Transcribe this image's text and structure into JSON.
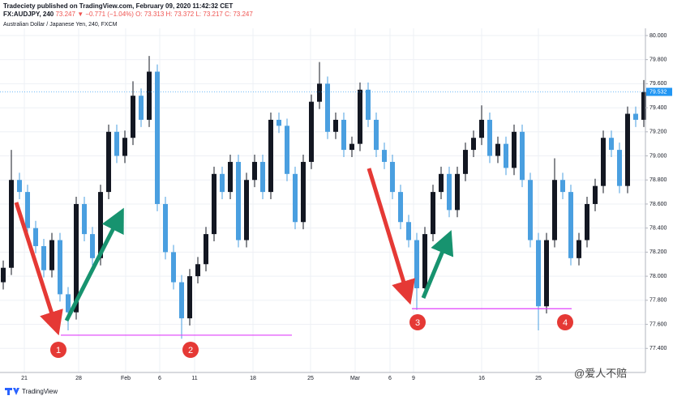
{
  "header": {
    "publisher": "Tradeciety published on TradingView.com, February 09, 2020 11:42:32 CET",
    "symbol": "FX:AUDJPY, 240",
    "price": "73.247",
    "change": "▼ −0.771 (−1.04%)",
    "open": "O: 73.313",
    "high": "H: 73.372",
    "low": "L: 73.217",
    "close": "C: 73.247"
  },
  "footer": {
    "brand": "TradingView",
    "watermark": "@爱人不赔"
  },
  "chart_data": {
    "type": "candlestick",
    "title": "Australian Dollar / Japanese Yen, 240, FXCM",
    "up_color": "#131722",
    "down_color": "#4a9fe0",
    "grid": true,
    "open": [
      77.95,
      78.07,
      78.8,
      78.7,
      78.4,
      78.25,
      78.05,
      78.3,
      77.85,
      77.7,
      78.6,
      78.35,
      78.15,
      78.7,
      79.2,
      79.0,
      79.15,
      79.5,
      79.3,
      79.7,
      78.6,
      78.2,
      77.95,
      77.65,
      78.0,
      78.1,
      78.35,
      78.85,
      78.7,
      78.95,
      78.3,
      78.8,
      78.95,
      78.7,
      79.3,
      79.25,
      78.85,
      78.45,
      78.95,
      79.45,
      79.6,
      79.2,
      79.3,
      79.05,
      79.1,
      79.55,
      79.3,
      79.05,
      78.95,
      78.7,
      78.45,
      78.3,
      77.9,
      78.35,
      78.7,
      78.85,
      78.55,
      78.85,
      79.05,
      79.15,
      79.3,
      79.0,
      79.1,
      78.9,
      79.2,
      78.8,
      78.3,
      77.75,
      78.3,
      78.8,
      78.7,
      78.15,
      78.3,
      78.6,
      78.75,
      79.15,
      79.05,
      78.75,
      79.35,
      79.3
    ],
    "high": [
      78.13,
      79.05,
      78.86,
      78.76,
      78.46,
      78.31,
      78.36,
      78.36,
      77.91,
      78.66,
      78.66,
      78.41,
      78.76,
      79.26,
      79.26,
      79.21,
      79.62,
      79.56,
      79.83,
      79.76,
      78.66,
      78.26,
      78.01,
      78.06,
      78.16,
      78.41,
      78.91,
      78.91,
      79.01,
      79.01,
      78.86,
      79.01,
      79.01,
      79.36,
      79.36,
      79.31,
      78.91,
      79.01,
      79.51,
      79.78,
      79.66,
      79.36,
      79.36,
      79.16,
      79.61,
      79.61,
      79.36,
      79.11,
      79.01,
      78.76,
      78.51,
      78.36,
      78.41,
      78.76,
      78.91,
      78.91,
      78.91,
      79.11,
      79.21,
      79.42,
      79.36,
      79.16,
      79.16,
      79.26,
      79.26,
      78.86,
      78.36,
      78.36,
      78.98,
      78.86,
      78.76,
      78.36,
      78.66,
      78.81,
      79.21,
      79.21,
      79.11,
      79.41,
      79.41,
      79.63
    ],
    "low": [
      77.89,
      78.01,
      78.64,
      78.34,
      78.19,
      77.99,
      77.99,
      77.79,
      77.55,
      77.64,
      78.29,
      78.09,
      78.09,
      78.64,
      78.94,
      78.94,
      79.09,
      79.24,
      79.24,
      78.54,
      78.14,
      77.89,
      77.48,
      77.59,
      77.94,
      78.04,
      78.29,
      78.64,
      78.64,
      78.24,
      78.24,
      78.74,
      78.64,
      78.64,
      79.19,
      78.79,
      78.39,
      78.39,
      78.89,
      79.39,
      79.14,
      79.14,
      78.99,
      78.99,
      79.04,
      79.24,
      78.99,
      78.89,
      78.64,
      78.39,
      78.24,
      77.72,
      77.84,
      78.29,
      78.64,
      78.49,
      78.49,
      78.79,
      78.99,
      79.09,
      78.94,
      78.94,
      78.84,
      78.84,
      78.74,
      78.24,
      77.55,
      77.69,
      78.24,
      78.64,
      78.09,
      78.09,
      78.24,
      78.54,
      78.69,
      78.99,
      78.69,
      78.69,
      79.24,
      79.24
    ],
    "close": [
      78.07,
      78.8,
      78.7,
      78.4,
      78.25,
      78.05,
      78.3,
      77.85,
      77.7,
      78.6,
      78.35,
      78.15,
      78.7,
      79.2,
      79.0,
      79.15,
      79.5,
      79.3,
      79.7,
      78.6,
      78.2,
      77.95,
      77.65,
      78.0,
      78.1,
      78.35,
      78.85,
      78.7,
      78.95,
      78.3,
      78.8,
      78.95,
      78.7,
      79.3,
      79.25,
      78.85,
      78.45,
      78.95,
      79.45,
      79.6,
      79.2,
      79.3,
      79.05,
      79.1,
      79.55,
      79.3,
      79.05,
      78.95,
      78.7,
      78.45,
      78.3,
      77.9,
      78.35,
      78.7,
      78.85,
      78.55,
      78.85,
      79.05,
      79.15,
      79.3,
      79.0,
      79.1,
      78.9,
      79.2,
      78.8,
      78.3,
      77.75,
      78.3,
      78.8,
      78.7,
      78.15,
      78.3,
      78.6,
      78.75,
      79.15,
      79.05,
      78.75,
      79.35,
      79.3,
      79.53
    ],
    "last_price": 79.532,
    "last_price_color": "#2196f3",
    "xlim": [
      -0.4,
      79.2
    ],
    "xticks": [
      {
        "value": 2.6,
        "label": "21"
      },
      {
        "value": 9.3,
        "label": "28"
      },
      {
        "value": 15.1,
        "label": "Feb"
      },
      {
        "value": 19.3,
        "label": "6"
      },
      {
        "value": 23.6,
        "label": "11"
      },
      {
        "value": 30.8,
        "label": "18"
      },
      {
        "value": 37.9,
        "label": "25"
      },
      {
        "value": 43.4,
        "label": "Mar"
      },
      {
        "value": 47.7,
        "label": "6"
      },
      {
        "value": 50.6,
        "label": "9"
      },
      {
        "value": 59,
        "label": "16"
      },
      {
        "value": 66,
        "label": "25"
      }
    ],
    "ylim": [
      77.2,
      80.06
    ],
    "yticks": [
      {
        "value": 77.4,
        "label": "77.400"
      },
      {
        "value": 77.6,
        "label": "77.600"
      },
      {
        "value": 77.8,
        "label": "77.800"
      },
      {
        "value": 78,
        "label": "78.000"
      },
      {
        "value": 78.2,
        "label": "78.200"
      },
      {
        "value": 78.4,
        "label": "78.400"
      },
      {
        "value": 78.6,
        "label": "78.600"
      },
      {
        "value": 78.8,
        "label": "78.800"
      },
      {
        "value": 79,
        "label": "79.000"
      },
      {
        "value": 79.2,
        "label": "79.200"
      },
      {
        "value": 79.4,
        "label": "79.400"
      },
      {
        "value": 79.6,
        "label": "79.600"
      },
      {
        "value": 79.8,
        "label": "79.800"
      },
      {
        "value": 80,
        "label": "80.000"
      }
    ],
    "levels": [
      77.51,
      77.73
    ],
    "level_color": "#e040fb",
    "markers": [
      "1",
      "2",
      "3",
      "4"
    ],
    "marker_color": "#e53935"
  }
}
